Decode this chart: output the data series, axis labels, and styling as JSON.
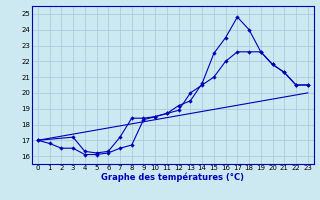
{
  "title": "Graphe des températures (°C)",
  "bg_color": "#cce8f0",
  "grid_color": "#aaccdd",
  "line_color": "#0000bb",
  "xlim": [
    -0.5,
    23.5
  ],
  "ylim": [
    15.5,
    25.5
  ],
  "yticks": [
    16,
    17,
    18,
    19,
    20,
    21,
    22,
    23,
    24,
    25
  ],
  "xticks": [
    0,
    1,
    2,
    3,
    4,
    5,
    6,
    7,
    8,
    9,
    10,
    11,
    12,
    13,
    14,
    15,
    16,
    17,
    18,
    19,
    20,
    21,
    22,
    23
  ],
  "line1_x": [
    0,
    1,
    2,
    3,
    4,
    5,
    6,
    7,
    8,
    9,
    10,
    11,
    12,
    13,
    14,
    15,
    16,
    17,
    18,
    19,
    20,
    21,
    22,
    23
  ],
  "line1_y": [
    17.0,
    16.8,
    16.5,
    16.5,
    16.1,
    16.1,
    16.2,
    16.5,
    16.7,
    18.3,
    18.5,
    18.7,
    19.2,
    19.5,
    20.6,
    22.5,
    23.5,
    24.8,
    24.0,
    22.6,
    21.8,
    21.3,
    20.5,
    20.5
  ],
  "line2_x": [
    0,
    3,
    4,
    5,
    6,
    7,
    8,
    9,
    10,
    11,
    12,
    13,
    14,
    15,
    16,
    17,
    18,
    19,
    20,
    21,
    22,
    23
  ],
  "line2_y": [
    17.0,
    17.2,
    16.3,
    16.2,
    16.3,
    17.2,
    18.4,
    18.4,
    18.5,
    18.7,
    18.9,
    20.0,
    20.5,
    21.0,
    22.0,
    22.6,
    22.6,
    22.6,
    21.8,
    21.3,
    20.5,
    20.5
  ],
  "line3_x": [
    0,
    23
  ],
  "line3_y": [
    17.0,
    20.0
  ]
}
